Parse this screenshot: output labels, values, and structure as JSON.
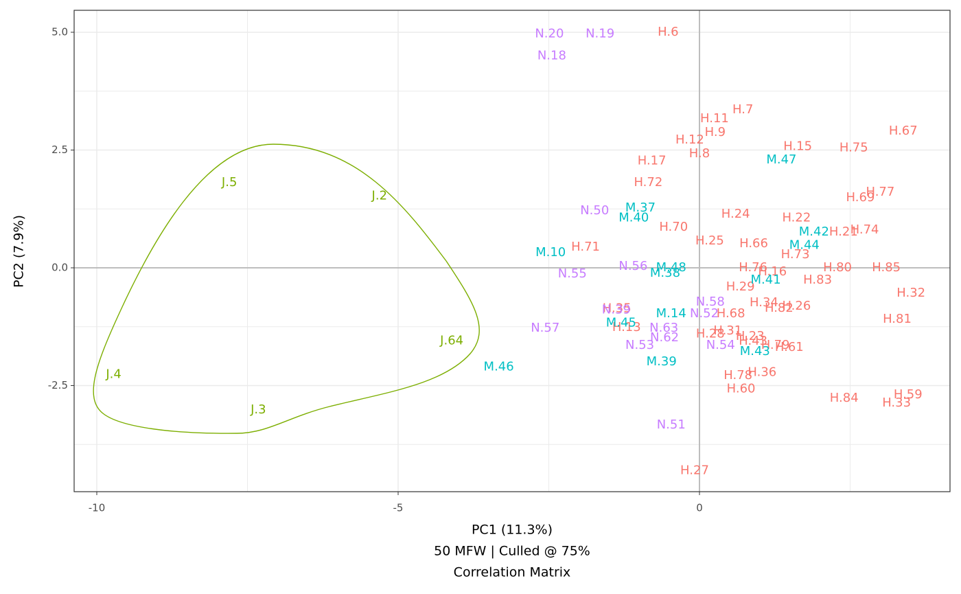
{
  "chart_data": {
    "type": "scatter",
    "xlabel_lines": [
      "PC1 (11.3%)",
      "50 MFW | Culled @ 75%",
      "Correlation Matrix"
    ],
    "ylabel": "PC2 (7.9%)",
    "xlim": [
      -10.376,
      4.157
    ],
    "ylim": [
      -4.752,
      5.466
    ],
    "xticks": [
      -10,
      -5,
      0
    ],
    "yticks": [
      -2.5,
      {
        "value": 0,
        "label": "0.0"
      },
      2.5,
      {
        "value": 5,
        "label": "5.0"
      }
    ],
    "xminor": [
      -7.5,
      -2.5,
      2.5
    ],
    "yminor": [
      -3.75,
      -1.25,
      1.25,
      3.75
    ],
    "grid": true,
    "reference_lines": {
      "x": 0,
      "y": 0
    },
    "series": [
      {
        "color": "#F8766D",
        "labels": [
          "H.6",
          "H.7",
          "H.11",
          "H.9",
          "H.12",
          "H.8",
          "H.17",
          "H.15",
          "H.75",
          "H.67",
          "H.72",
          "H.77",
          "H.69",
          "H.24",
          "H.22",
          "H.70",
          "H.74",
          "H.21",
          "H.25",
          "H.66",
          "H.71",
          "H.73",
          "H.80",
          "H.85",
          "H.76",
          "H.16",
          "H.83",
          "H.29",
          "H.32",
          "H.34",
          "H.26",
          "H.82",
          "H.35",
          "H.68",
          "H.81",
          "H.13",
          "H.28",
          "H.31",
          "H.23",
          "H.43",
          "H.79",
          "H.61",
          "H.36",
          "H.78",
          "H.60",
          "H.84",
          "H.59",
          "H.33",
          "H.27"
        ],
        "x": [
          -0.52,
          0.72,
          0.25,
          0.26,
          -0.16,
          0.0,
          -0.79,
          1.63,
          2.56,
          3.38,
          -0.85,
          3.0,
          2.67,
          0.6,
          1.61,
          -0.43,
          2.74,
          2.39,
          0.17,
          0.9,
          -1.89,
          1.59,
          2.29,
          3.1,
          0.89,
          1.21,
          1.96,
          0.68,
          3.51,
          1.07,
          1.61,
          1.32,
          -1.37,
          0.52,
          3.28,
          -1.21,
          0.18,
          0.47,
          0.84,
          0.89,
          1.26,
          1.49,
          1.04,
          0.64,
          0.69,
          2.4,
          3.46,
          3.27,
          -0.08
        ],
        "y": [
          5.0,
          3.35,
          3.16,
          2.87,
          2.71,
          2.42,
          2.27,
          2.57,
          2.54,
          2.9,
          1.81,
          1.6,
          1.49,
          1.14,
          1.06,
          0.86,
          0.8,
          0.76,
          0.57,
          0.51,
          0.44,
          0.28,
          0.0,
          0.0,
          0.0,
          -0.09,
          -0.26,
          -0.41,
          -0.54,
          -0.74,
          -0.82,
          -0.86,
          -0.87,
          -0.98,
          -1.09,
          -1.27,
          -1.41,
          -1.34,
          -1.46,
          -1.56,
          -1.65,
          -1.69,
          -2.22,
          -2.29,
          -2.57,
          -2.77,
          -2.7,
          -2.87,
          -4.31
        ]
      },
      {
        "color": "#7CAE00",
        "labels": [
          "J.5",
          "J.2",
          "J.64",
          "J.4",
          "J.3"
        ],
        "x": [
          -7.8,
          -5.31,
          -4.11,
          -9.72,
          -7.32
        ],
        "y": [
          1.81,
          1.52,
          -1.55,
          -2.27,
          -3.02
        ]
      },
      {
        "color": "#00BFC4",
        "labels": [
          "M.47",
          "M.37",
          "M.40",
          "M.42",
          "M.44",
          "M.10",
          "M.48",
          "M.38",
          "M.41",
          "M.14",
          "M.45",
          "M.43",
          "M.39",
          "M.46"
        ],
        "x": [
          1.36,
          -0.98,
          -1.09,
          1.9,
          1.74,
          -2.47,
          -0.47,
          -0.57,
          1.1,
          -0.47,
          -1.3,
          0.92,
          -0.63,
          -3.33
        ],
        "y": [
          2.29,
          1.27,
          1.06,
          0.76,
          0.47,
          0.32,
          0.0,
          -0.12,
          -0.26,
          -0.98,
          -1.17,
          -1.78,
          -2.0,
          -2.11
        ]
      },
      {
        "color": "#C77CFF",
        "labels": [
          "N.20",
          "N.19",
          "N.18",
          "N.50",
          "N.56",
          "N.55",
          "N.58",
          "N.39",
          "N.52",
          "N.57",
          "N.63",
          "N.62",
          "N.53",
          "N.54",
          "N.51"
        ],
        "x": [
          -2.49,
          -1.65,
          -2.45,
          -1.74,
          -1.1,
          -2.11,
          0.18,
          -1.38,
          0.08,
          -2.56,
          -0.59,
          -0.58,
          -0.99,
          0.35,
          -0.47
        ],
        "y": [
          4.96,
          4.96,
          4.5,
          1.21,
          0.03,
          -0.13,
          -0.73,
          -0.9,
          -0.98,
          -1.28,
          -1.28,
          -1.49,
          -1.65,
          -1.65,
          -3.34
        ]
      }
    ]
  }
}
